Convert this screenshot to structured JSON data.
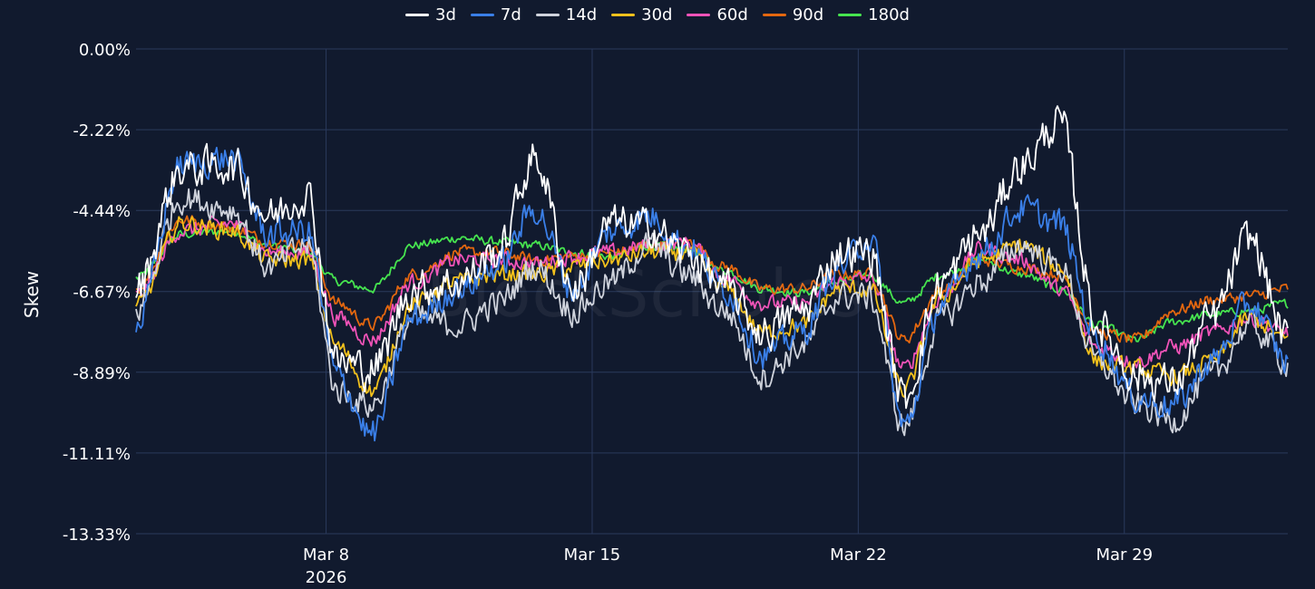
{
  "watermark": "BlockScholes",
  "chart_data": {
    "type": "line",
    "title": "",
    "ylabel": "Skew",
    "xlabel": "",
    "ylim": [
      -13.33,
      0.0
    ],
    "yticks": [
      0.0,
      -2.22,
      -4.44,
      -6.67,
      -8.89,
      -11.11,
      -13.33
    ],
    "ytick_labels": [
      "0.00%",
      "-2.22%",
      "-4.44%",
      "-6.67%",
      "-8.89%",
      "-11.11%",
      "-13.33%"
    ],
    "x_range_days": [
      3,
      33.3
    ],
    "xticks": [
      {
        "day": 8,
        "label": "Mar 8",
        "sublabel": "2026"
      },
      {
        "day": 15,
        "label": "Mar 15",
        "sublabel": ""
      },
      {
        "day": 22,
        "label": "Mar 22",
        "sublabel": ""
      },
      {
        "day": 29,
        "label": "Mar 29",
        "sublabel": ""
      }
    ],
    "x_keypoints": [
      3,
      4.2,
      5.5,
      6.5,
      7.5,
      8.3,
      9.2,
      10.3,
      11.5,
      12.5,
      13.5,
      14.5,
      15.5,
      16.5,
      17.5,
      18.5,
      19.5,
      20.5,
      21.5,
      22.3,
      23.2,
      24.2,
      25.2,
      26.3,
      27.3,
      28.3,
      29.3,
      30.3,
      31.3,
      32.3,
      33.3
    ],
    "series": [
      {
        "name": "3d",
        "color": "#ffffff",
        "volatility": 0.95,
        "values": [
          -6.6,
          -3.3,
          -3.2,
          -4.6,
          -4.0,
          -8.6,
          -8.8,
          -6.6,
          -6.4,
          -5.6,
          -3.0,
          -6.6,
          -4.8,
          -4.9,
          -5.6,
          -6.6,
          -7.8,
          -7.2,
          -5.6,
          -5.6,
          -9.6,
          -6.4,
          -5.1,
          -3.2,
          -2.0,
          -7.6,
          -9.0,
          -9.2,
          -7.4,
          -5.2,
          -8.0
        ]
      },
      {
        "name": "7d",
        "color": "#3a7fe8",
        "volatility": 0.75,
        "values": [
          -7.6,
          -3.2,
          -3.0,
          -5.1,
          -5.0,
          -9.0,
          -10.6,
          -7.4,
          -6.6,
          -6.0,
          -4.4,
          -6.6,
          -5.0,
          -4.6,
          -5.4,
          -6.6,
          -8.4,
          -7.8,
          -6.0,
          -5.2,
          -10.4,
          -7.0,
          -5.6,
          -4.4,
          -4.8,
          -8.0,
          -9.6,
          -9.8,
          -8.6,
          -7.0,
          -8.6
        ]
      },
      {
        "name": "14d",
        "color": "#cfd3dc",
        "volatility": 0.7,
        "values": [
          -7.2,
          -4.1,
          -4.4,
          -6.0,
          -5.4,
          -9.4,
          -9.8,
          -7.4,
          -7.6,
          -7.0,
          -6.0,
          -7.2,
          -6.4,
          -5.4,
          -6.2,
          -7.2,
          -9.0,
          -8.2,
          -6.8,
          -6.8,
          -10.4,
          -7.4,
          -6.4,
          -5.4,
          -6.0,
          -8.6,
          -9.8,
          -10.2,
          -9.0,
          -7.6,
          -8.6
        ]
      },
      {
        "name": "30d",
        "color": "#f2c11c",
        "volatility": 0.45,
        "values": [
          -7.1,
          -4.8,
          -5.0,
          -5.8,
          -5.8,
          -8.2,
          -9.4,
          -7.0,
          -6.4,
          -6.2,
          -6.2,
          -6.0,
          -5.8,
          -5.6,
          -5.6,
          -6.6,
          -7.8,
          -7.6,
          -6.6,
          -6.6,
          -9.4,
          -6.8,
          -5.8,
          -5.4,
          -6.0,
          -8.6,
          -8.8,
          -9.0,
          -8.6,
          -7.4,
          -8.0
        ]
      },
      {
        "name": "60d",
        "color": "#f053b8",
        "volatility": 0.4,
        "values": [
          -6.8,
          -5.0,
          -4.8,
          -5.6,
          -5.6,
          -7.4,
          -8.0,
          -6.4,
          -5.8,
          -5.8,
          -5.9,
          -5.7,
          -5.6,
          -5.4,
          -5.3,
          -6.3,
          -7.0,
          -7.0,
          -6.4,
          -6.3,
          -8.8,
          -6.8,
          -5.5,
          -5.8,
          -6.6,
          -8.2,
          -8.6,
          -8.2,
          -7.8,
          -7.4,
          -7.8
        ]
      },
      {
        "name": "90d",
        "color": "#e4670f",
        "volatility": 0.3,
        "values": [
          -6.6,
          -4.7,
          -4.9,
          -5.3,
          -5.4,
          -7.0,
          -7.6,
          -6.2,
          -5.6,
          -5.6,
          -5.8,
          -5.7,
          -5.6,
          -5.4,
          -5.3,
          -6.0,
          -6.6,
          -6.6,
          -6.2,
          -6.2,
          -8.0,
          -6.6,
          -5.8,
          -6.0,
          -6.2,
          -7.8,
          -8.0,
          -7.2,
          -6.9,
          -6.8,
          -6.6
        ]
      },
      {
        "name": "180d",
        "color": "#46e44f",
        "volatility": 0.22,
        "values": [
          -6.3,
          -5.1,
          -5.0,
          -5.4,
          -5.6,
          -6.4,
          -6.6,
          -5.4,
          -5.2,
          -5.3,
          -5.4,
          -5.6,
          -5.7,
          -5.4,
          -5.5,
          -6.1,
          -6.6,
          -6.7,
          -6.4,
          -6.2,
          -7.0,
          -6.2,
          -5.8,
          -6.2,
          -6.6,
          -7.6,
          -8.0,
          -7.5,
          -7.3,
          -7.2,
          -7.0
        ]
      }
    ]
  }
}
